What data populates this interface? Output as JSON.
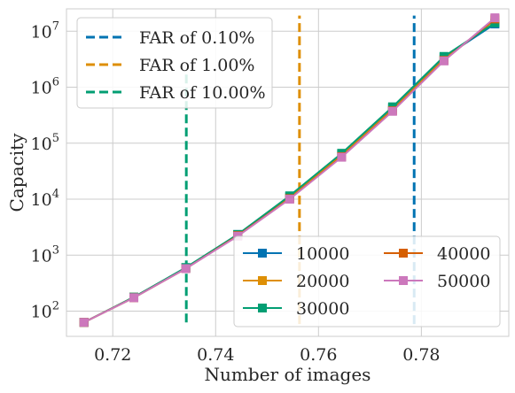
{
  "chart_data": {
    "type": "line",
    "xlabel": "Number of images",
    "ylabel": "Capacity",
    "xlim": [
      0.711,
      0.797
    ],
    "ylim_log10": [
      1.55,
      7.4
    ],
    "xscale": "linear",
    "yscale": "log",
    "grid": true,
    "x_ticks": [
      {
        "value": 0.72,
        "label": "0.72"
      },
      {
        "value": 0.74,
        "label": "0.74"
      },
      {
        "value": 0.76,
        "label": "0.76"
      },
      {
        "value": 0.78,
        "label": "0.78"
      }
    ],
    "y_ticks": [
      {
        "exp": 2,
        "base": "10",
        "sup": "2"
      },
      {
        "exp": 3,
        "base": "10",
        "sup": "3"
      },
      {
        "exp": 4,
        "base": "10",
        "sup": "4"
      },
      {
        "exp": 5,
        "base": "10",
        "sup": "5"
      },
      {
        "exp": 6,
        "base": "10",
        "sup": "6"
      },
      {
        "exp": 7,
        "base": "10",
        "sup": "7"
      }
    ],
    "x": [
      0.7144,
      0.7241,
      0.7342,
      0.7443,
      0.7544,
      0.7645,
      0.7744,
      0.7844,
      0.7943
    ],
    "series": [
      {
        "name": "10000",
        "color": "#0173b2",
        "log10": [
          1.8,
          2.25,
          2.77,
          3.37,
          4.05,
          4.8,
          5.63,
          6.53,
          7.13
        ]
      },
      {
        "name": "20000",
        "color": "#de8f05",
        "log10": [
          1.8,
          2.25,
          2.77,
          3.36,
          4.03,
          4.78,
          5.6,
          6.5,
          7.2
        ]
      },
      {
        "name": "30000",
        "color": "#029e73",
        "log10": [
          1.8,
          2.25,
          2.78,
          3.37,
          4.06,
          4.82,
          5.65,
          6.55,
          7.15
        ]
      },
      {
        "name": "40000",
        "color": "#d55e00",
        "log10": [
          1.8,
          2.24,
          2.76,
          3.35,
          4.01,
          4.76,
          5.58,
          6.48,
          7.22
        ]
      },
      {
        "name": "50000",
        "color": "#cc78bc",
        "log10": [
          1.8,
          2.24,
          2.76,
          3.34,
          4.0,
          4.75,
          5.57,
          6.47,
          7.24
        ]
      }
    ],
    "thresholds": [
      {
        "label": "FAR of 0.10%",
        "color": "#0173b2",
        "x": 0.7786,
        "log10": [
          1.77,
          7.28
        ]
      },
      {
        "label": "FAR of 1.00%",
        "color": "#de8f05",
        "x": 0.7563,
        "log10": [
          1.77,
          7.28
        ]
      },
      {
        "label": "FAR of 10.00%",
        "color": "#029e73",
        "x": 0.7343,
        "log10": [
          1.8,
          6.3
        ]
      }
    ],
    "legends": {
      "thresholds_position": "upper-left",
      "series_position": "lower-right",
      "series_columns": 2
    }
  }
}
